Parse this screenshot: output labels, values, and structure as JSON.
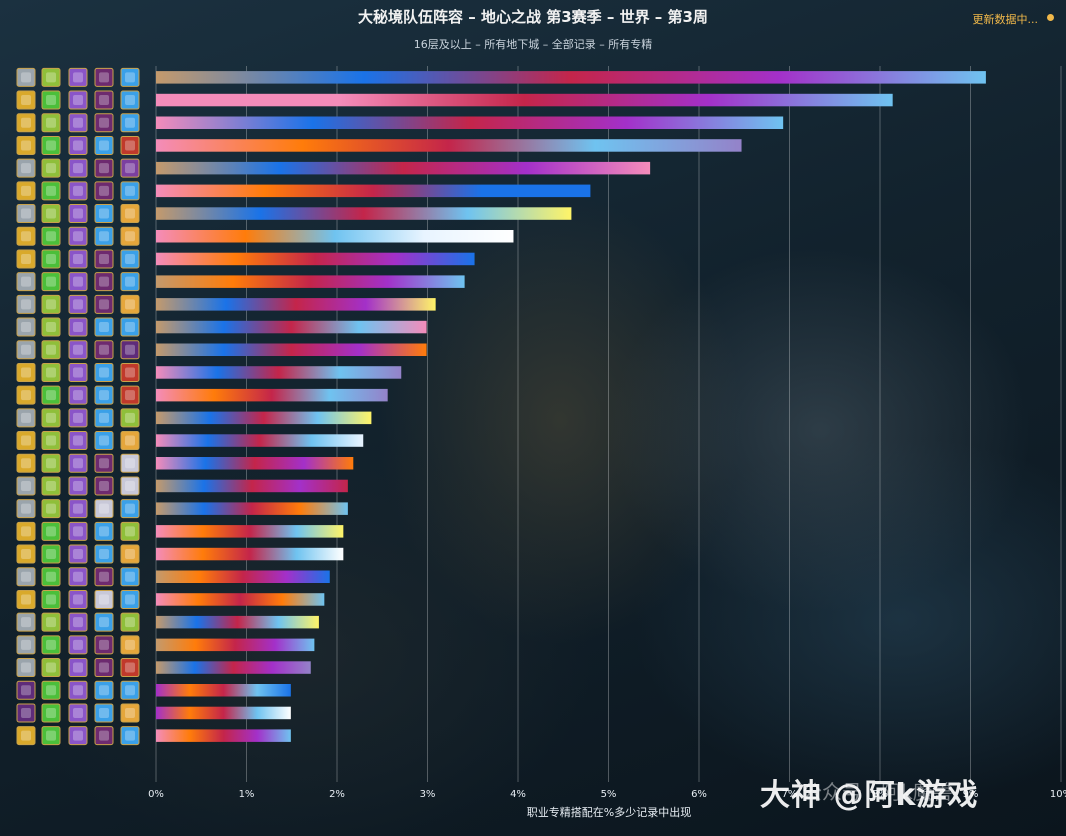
{
  "header": {
    "title": "大秘境队伍阵容 – 地心之战 第3赛季 – 世界 – 第3周",
    "subtitle": "16层及以上 – 所有地下城 – 全部记录 – 所有专精",
    "status": "更新数据中..."
  },
  "watermark": {
    "main": "大神 @阿k游戏",
    "faint": "公众号 · 阿k魔兽"
  },
  "icon_colors": {
    "tank-icon": "#9aa4ac",
    "paladin-tank-icon": "#d9a92b",
    "healer-druid-icon": "#4bbf3a",
    "priest-icon": "#8a55c8",
    "rogue-icon": "#6d2a6f",
    "shaman-icon": "#2a78e0",
    "mage-icon": "#3aa0e8",
    "warrior-icon": "#c0392b",
    "warlock-icon": "#7b3fa0",
    "dh-icon": "#5e2b7a",
    "hunter-icon": "#8fbf3a",
    "dk-icon": "#c8c8d8",
    "monk-icon": "#e5a63b"
  },
  "chart_data": {
    "type": "bar",
    "orientation": "horizontal",
    "xlabel": "职业专精搭配在%多少记录中出现",
    "xlim": [
      0,
      10
    ],
    "xticks": [
      "0%",
      "1%",
      "2%",
      "3%",
      "4%",
      "5%",
      "6%",
      "7%",
      "8%",
      "9%",
      "10%"
    ],
    "grid": true,
    "rows": [
      {
        "value": 9.17,
        "icons": [
          "tank-icon",
          "hunter-icon",
          "priest-icon",
          "rogue-icon",
          "mage-icon"
        ],
        "colors": [
          "#c49a6c",
          "#1a73e8",
          "#c4254a",
          "#a330c9",
          "#6fc3f0"
        ]
      },
      {
        "value": 8.14,
        "icons": [
          "paladin-tank-icon",
          "healer-druid-icon",
          "priest-icon",
          "rogue-icon",
          "mage-icon"
        ],
        "colors": [
          "#f48cba",
          "#f48cba",
          "#c4254a",
          "#a330c9",
          "#6fc3f0"
        ]
      },
      {
        "value": 6.93,
        "icons": [
          "paladin-tank-icon",
          "hunter-icon",
          "priest-icon",
          "rogue-icon",
          "mage-icon"
        ],
        "colors": [
          "#f48cba",
          "#1a73e8",
          "#c4254a",
          "#a330c9",
          "#6fc3f0"
        ]
      },
      {
        "value": 6.47,
        "icons": [
          "paladin-tank-icon",
          "healer-druid-icon",
          "priest-icon",
          "mage-icon",
          "warrior-icon"
        ],
        "colors": [
          "#f48cba",
          "#ff7c0a",
          "#c4254a",
          "#6fc3f0",
          "#9482c9"
        ]
      },
      {
        "value": 5.46,
        "icons": [
          "tank-icon",
          "hunter-icon",
          "priest-icon",
          "rogue-icon",
          "warlock-icon"
        ],
        "colors": [
          "#c49a6c",
          "#1a73e8",
          "#c4254a",
          "#a330c9",
          "#f48cba"
        ]
      },
      {
        "value": 4.8,
        "icons": [
          "paladin-tank-icon",
          "healer-druid-icon",
          "priest-icon",
          "rogue-icon",
          "mage-icon"
        ],
        "colors": [
          "#f48cba",
          "#ff7c0a",
          "#c4254a",
          "#1a73e8",
          "#1a73e8"
        ]
      },
      {
        "value": 4.59,
        "icons": [
          "tank-icon",
          "hunter-icon",
          "priest-icon",
          "mage-icon",
          "monk-icon"
        ],
        "colors": [
          "#c49a6c",
          "#1a73e8",
          "#c4254a",
          "#6fc3f0",
          "#fff468"
        ]
      },
      {
        "value": 3.95,
        "icons": [
          "paladin-tank-icon",
          "healer-druid-icon",
          "priest-icon",
          "mage-icon",
          "monk-icon"
        ],
        "colors": [
          "#f48cba",
          "#ff7c0a",
          "#6fc3f0",
          "#e8f4ff",
          "#ffffff"
        ]
      },
      {
        "value": 3.52,
        "icons": [
          "paladin-tank-icon",
          "healer-druid-icon",
          "priest-icon",
          "rogue-icon",
          "mage-icon"
        ],
        "colors": [
          "#f48cba",
          "#ff7c0a",
          "#c4254a",
          "#a330c9",
          "#1a73e8"
        ]
      },
      {
        "value": 3.41,
        "icons": [
          "tank-icon",
          "healer-druid-icon",
          "priest-icon",
          "rogue-icon",
          "mage-icon"
        ],
        "colors": [
          "#c49a6c",
          "#ff7c0a",
          "#c4254a",
          "#a330c9",
          "#6fc3f0"
        ]
      },
      {
        "value": 3.09,
        "icons": [
          "tank-icon",
          "hunter-icon",
          "priest-icon",
          "rogue-icon",
          "monk-icon"
        ],
        "colors": [
          "#c49a6c",
          "#1a73e8",
          "#c4254a",
          "#a330c9",
          "#fff468"
        ]
      },
      {
        "value": 2.99,
        "icons": [
          "tank-icon",
          "hunter-icon",
          "priest-icon",
          "mage-icon",
          "mage-icon"
        ],
        "colors": [
          "#c49a6c",
          "#1a73e8",
          "#c4254a",
          "#6fc3f0",
          "#f48cba"
        ]
      },
      {
        "value": 2.99,
        "icons": [
          "tank-icon",
          "hunter-icon",
          "priest-icon",
          "rogue-icon",
          "dh-icon"
        ],
        "colors": [
          "#c49a6c",
          "#1a73e8",
          "#c4254a",
          "#a330c9",
          "#ff7c0a"
        ]
      },
      {
        "value": 2.71,
        "icons": [
          "paladin-tank-icon",
          "hunter-icon",
          "priest-icon",
          "mage-icon",
          "warrior-icon"
        ],
        "colors": [
          "#f48cba",
          "#1a73e8",
          "#c4254a",
          "#6fc3f0",
          "#9482c9"
        ]
      },
      {
        "value": 2.56,
        "icons": [
          "paladin-tank-icon",
          "healer-druid-icon",
          "priest-icon",
          "mage-icon",
          "warrior-icon"
        ],
        "colors": [
          "#f48cba",
          "#ff7c0a",
          "#c4254a",
          "#6fc3f0",
          "#9482c9"
        ]
      },
      {
        "value": 2.38,
        "icons": [
          "tank-icon",
          "hunter-icon",
          "priest-icon",
          "mage-icon",
          "hunter-icon"
        ],
        "colors": [
          "#c49a6c",
          "#1a73e8",
          "#c4254a",
          "#6fc3f0",
          "#fff468"
        ]
      },
      {
        "value": 2.29,
        "icons": [
          "paladin-tank-icon",
          "hunter-icon",
          "priest-icon",
          "mage-icon",
          "monk-icon"
        ],
        "colors": [
          "#f48cba",
          "#1a73e8",
          "#c4254a",
          "#6fc3f0",
          "#e8f4ff"
        ]
      },
      {
        "value": 2.18,
        "icons": [
          "paladin-tank-icon",
          "hunter-icon",
          "priest-icon",
          "rogue-icon",
          "dk-icon"
        ],
        "colors": [
          "#f48cba",
          "#1a73e8",
          "#c4254a",
          "#a330c9",
          "#ff7c0a"
        ]
      },
      {
        "value": 2.12,
        "icons": [
          "tank-icon",
          "hunter-icon",
          "priest-icon",
          "rogue-icon",
          "dk-icon"
        ],
        "colors": [
          "#c49a6c",
          "#1a73e8",
          "#c4254a",
          "#a330c9",
          "#c4254a"
        ]
      },
      {
        "value": 2.12,
        "icons": [
          "tank-icon",
          "hunter-icon",
          "priest-icon",
          "dk-icon",
          "mage-icon"
        ],
        "colors": [
          "#c49a6c",
          "#1a73e8",
          "#c4254a",
          "#ff7c0a",
          "#6fc3f0"
        ]
      },
      {
        "value": 2.07,
        "icons": [
          "paladin-tank-icon",
          "healer-druid-icon",
          "priest-icon",
          "mage-icon",
          "hunter-icon"
        ],
        "colors": [
          "#f48cba",
          "#ff7c0a",
          "#c4254a",
          "#6fc3f0",
          "#fff468"
        ]
      },
      {
        "value": 2.07,
        "icons": [
          "paladin-tank-icon",
          "healer-druid-icon",
          "priest-icon",
          "mage-icon",
          "monk-icon"
        ],
        "colors": [
          "#f48cba",
          "#ff7c0a",
          "#c4254a",
          "#6fc3f0",
          "#ffffff"
        ]
      },
      {
        "value": 1.92,
        "icons": [
          "tank-icon",
          "healer-druid-icon",
          "priest-icon",
          "rogue-icon",
          "mage-icon"
        ],
        "colors": [
          "#c49a6c",
          "#ff7c0a",
          "#c4254a",
          "#a330c9",
          "#1a73e8"
        ]
      },
      {
        "value": 1.86,
        "icons": [
          "paladin-tank-icon",
          "healer-druid-icon",
          "priest-icon",
          "dk-icon",
          "mage-icon"
        ],
        "colors": [
          "#f48cba",
          "#ff7c0a",
          "#c4254a",
          "#ff7c0a",
          "#6fc3f0"
        ]
      },
      {
        "value": 1.8,
        "icons": [
          "tank-icon",
          "hunter-icon",
          "priest-icon",
          "mage-icon",
          "hunter-icon"
        ],
        "colors": [
          "#c49a6c",
          "#1a73e8",
          "#c4254a",
          "#6fc3f0",
          "#fff468"
        ]
      },
      {
        "value": 1.75,
        "icons": [
          "tank-icon",
          "healer-druid-icon",
          "priest-icon",
          "rogue-icon",
          "monk-icon"
        ],
        "colors": [
          "#c49a6c",
          "#ff7c0a",
          "#c4254a",
          "#a330c9",
          "#6fc3f0"
        ]
      },
      {
        "value": 1.71,
        "icons": [
          "tank-icon",
          "hunter-icon",
          "priest-icon",
          "rogue-icon",
          "warrior-icon"
        ],
        "colors": [
          "#c49a6c",
          "#1a73e8",
          "#c4254a",
          "#a330c9",
          "#9482c9"
        ]
      },
      {
        "value": 1.49,
        "icons": [
          "dh-icon",
          "healer-druid-icon",
          "priest-icon",
          "mage-icon",
          "mage-icon"
        ],
        "colors": [
          "#a330c9",
          "#ff7c0a",
          "#c4254a",
          "#6fc3f0",
          "#1a73e8"
        ]
      },
      {
        "value": 1.49,
        "icons": [
          "dh-icon",
          "healer-druid-icon",
          "priest-icon",
          "mage-icon",
          "monk-icon"
        ],
        "colors": [
          "#a330c9",
          "#ff7c0a",
          "#c4254a",
          "#6fc3f0",
          "#ffffff"
        ]
      },
      {
        "value": 1.49,
        "icons": [
          "paladin-tank-icon",
          "healer-druid-icon",
          "priest-icon",
          "rogue-icon",
          "mage-icon"
        ],
        "colors": [
          "#f48cba",
          "#ff7c0a",
          "#c4254a",
          "#a330c9",
          "#6fc3f0"
        ]
      }
    ]
  }
}
